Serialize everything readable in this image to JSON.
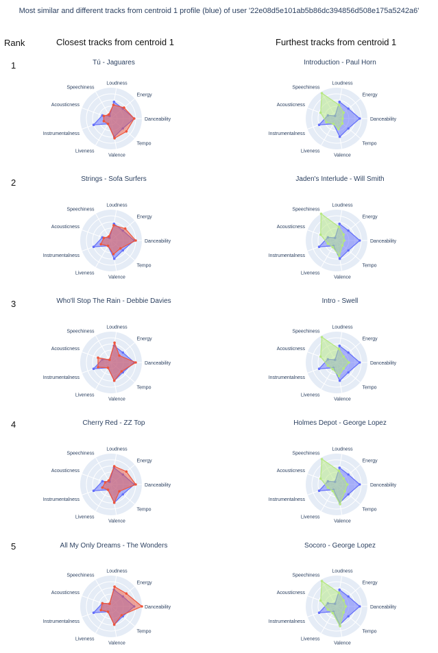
{
  "title": "Most similar and different tracks from centroid 1 profile (blue) of user '22e08d5e101ab5b86dc394856d508e175a5242a6'",
  "rank_header": "Rank",
  "columns": {
    "closest": "Closest tracks from centroid 1",
    "furthest": "Furthest tracks from centroid 1"
  },
  "colors": {
    "centroid": "#636efa",
    "closest": "#ef553b",
    "furthest": "#b6e880",
    "polar_bg": "#e5ecf6"
  },
  "chart_data": {
    "type": "radar",
    "axes": [
      "Danceability",
      "Energy",
      "Loudness",
      "Speechiness",
      "Acousticness",
      "Instrumentalness",
      "Liveness",
      "Valence",
      "Tempo"
    ],
    "radial_range": [
      0,
      1
    ],
    "centroid": {
      "values": [
        0.75,
        0.5,
        0.55,
        0.1,
        0.3,
        0.6,
        0.2,
        0.6,
        0.5
      ]
    },
    "rows": [
      {
        "rank": "1",
        "closest": {
          "title": "Tú - Jaguares",
          "values": [
            0.75,
            0.55,
            0.45,
            0.15,
            0.25,
            0.25,
            0.2,
            0.65,
            0.65
          ]
        },
        "furthest": {
          "title": "Introduction - Paul Horn",
          "values": [
            0.2,
            0.3,
            0.45,
            0.95,
            0.55,
            0.35,
            0.2,
            0.35,
            0.25
          ]
        }
      },
      {
        "rank": "2",
        "closest": {
          "title": "Strings - Sofa Surfers",
          "values": [
            0.8,
            0.6,
            0.5,
            0.15,
            0.25,
            0.35,
            0.2,
            0.45,
            0.4
          ]
        },
        "furthest": {
          "title": "Jaden's Interlude - Will Smith",
          "values": [
            0.25,
            0.3,
            0.45,
            1.0,
            0.55,
            0.3,
            0.25,
            0.5,
            0.25
          ]
        }
      },
      {
        "rank": "3",
        "closest": {
          "title": "Who'll Stop The Rain - Debbie Davies",
          "values": [
            0.8,
            0.35,
            0.65,
            0.1,
            0.45,
            0.45,
            0.2,
            0.6,
            0.45
          ]
        },
        "furthest": {
          "title": "Intro - Swell",
          "values": [
            0.4,
            0.3,
            0.45,
            0.95,
            0.55,
            0.3,
            0.25,
            0.45,
            0.3
          ]
        }
      },
      {
        "rank": "4",
        "closest": {
          "title": "Cherry Red - ZZ Top",
          "values": [
            0.8,
            0.65,
            0.6,
            0.15,
            0.2,
            0.3,
            0.2,
            0.6,
            0.35
          ]
        },
        "furthest": {
          "title": "Holmes Depot - George Lopez",
          "values": [
            0.35,
            0.3,
            0.45,
            0.95,
            0.55,
            0.3,
            0.25,
            0.65,
            0.35
          ]
        }
      },
      {
        "rank": "5",
        "closest": {
          "title": "All My Only Dreams - The Wonders",
          "values": [
            1.0,
            0.65,
            0.65,
            0.1,
            0.3,
            0.35,
            0.2,
            0.6,
            0.45
          ]
        },
        "furthest": {
          "title": "Socoro - George Lopez",
          "values": [
            0.3,
            0.3,
            0.45,
            0.95,
            0.55,
            0.3,
            0.25,
            0.65,
            0.3
          ]
        }
      }
    ]
  }
}
